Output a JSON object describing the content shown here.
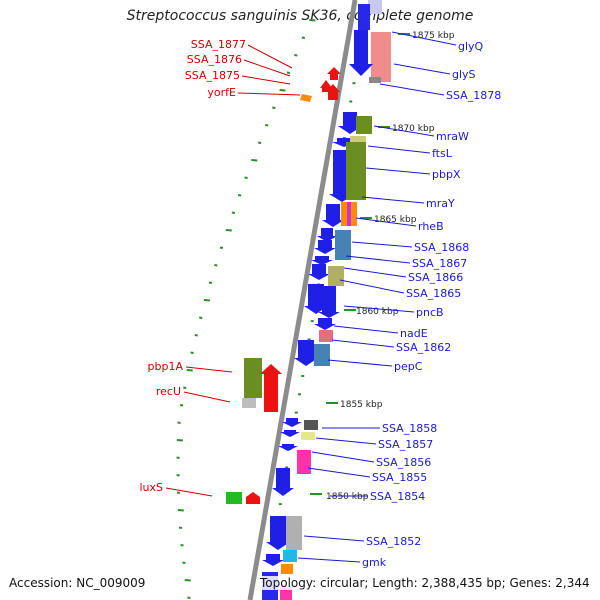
{
  "title": "Streptococcus sanguinis SK36, complete genome",
  "footer": {
    "accession": "Accession: NC_009009",
    "topology": "Topology: circular; Length: 2,388,435 bp; Genes: 2,344"
  },
  "kbp_labels": [
    "1875 kbp",
    "1870 kbp",
    "1865 kbp",
    "1860 kbp",
    "1855 kbp",
    "1850 kbp"
  ],
  "left_genes": [
    "SSA_1877",
    "SSA_1876",
    "SSA_1875",
    "yorfE",
    "pbp1A",
    "recU",
    "luxS"
  ],
  "right_genes": [
    "glyQ",
    "glyS",
    "SSA_1878",
    "mraW",
    "ftsL",
    "pbpX",
    "mraY",
    "rheB",
    "SSA_1868",
    "SSA_1867",
    "SSA_1866",
    "SSA_1865",
    "pncB",
    "nadE",
    "SSA_1862",
    "pepC",
    "SSA_1858",
    "SSA_1857",
    "SSA_1856",
    "SSA_1855",
    "SSA_1854",
    "SSA_1852",
    "gmk"
  ],
  "colors": {
    "left_label": "#cc0000",
    "right_label": "#1a1acc",
    "backbone": "#8c8c8c",
    "tick": "#2e8b2e",
    "strand_forward": "#1f1fe6",
    "strand_reverse": "#ee1111"
  }
}
